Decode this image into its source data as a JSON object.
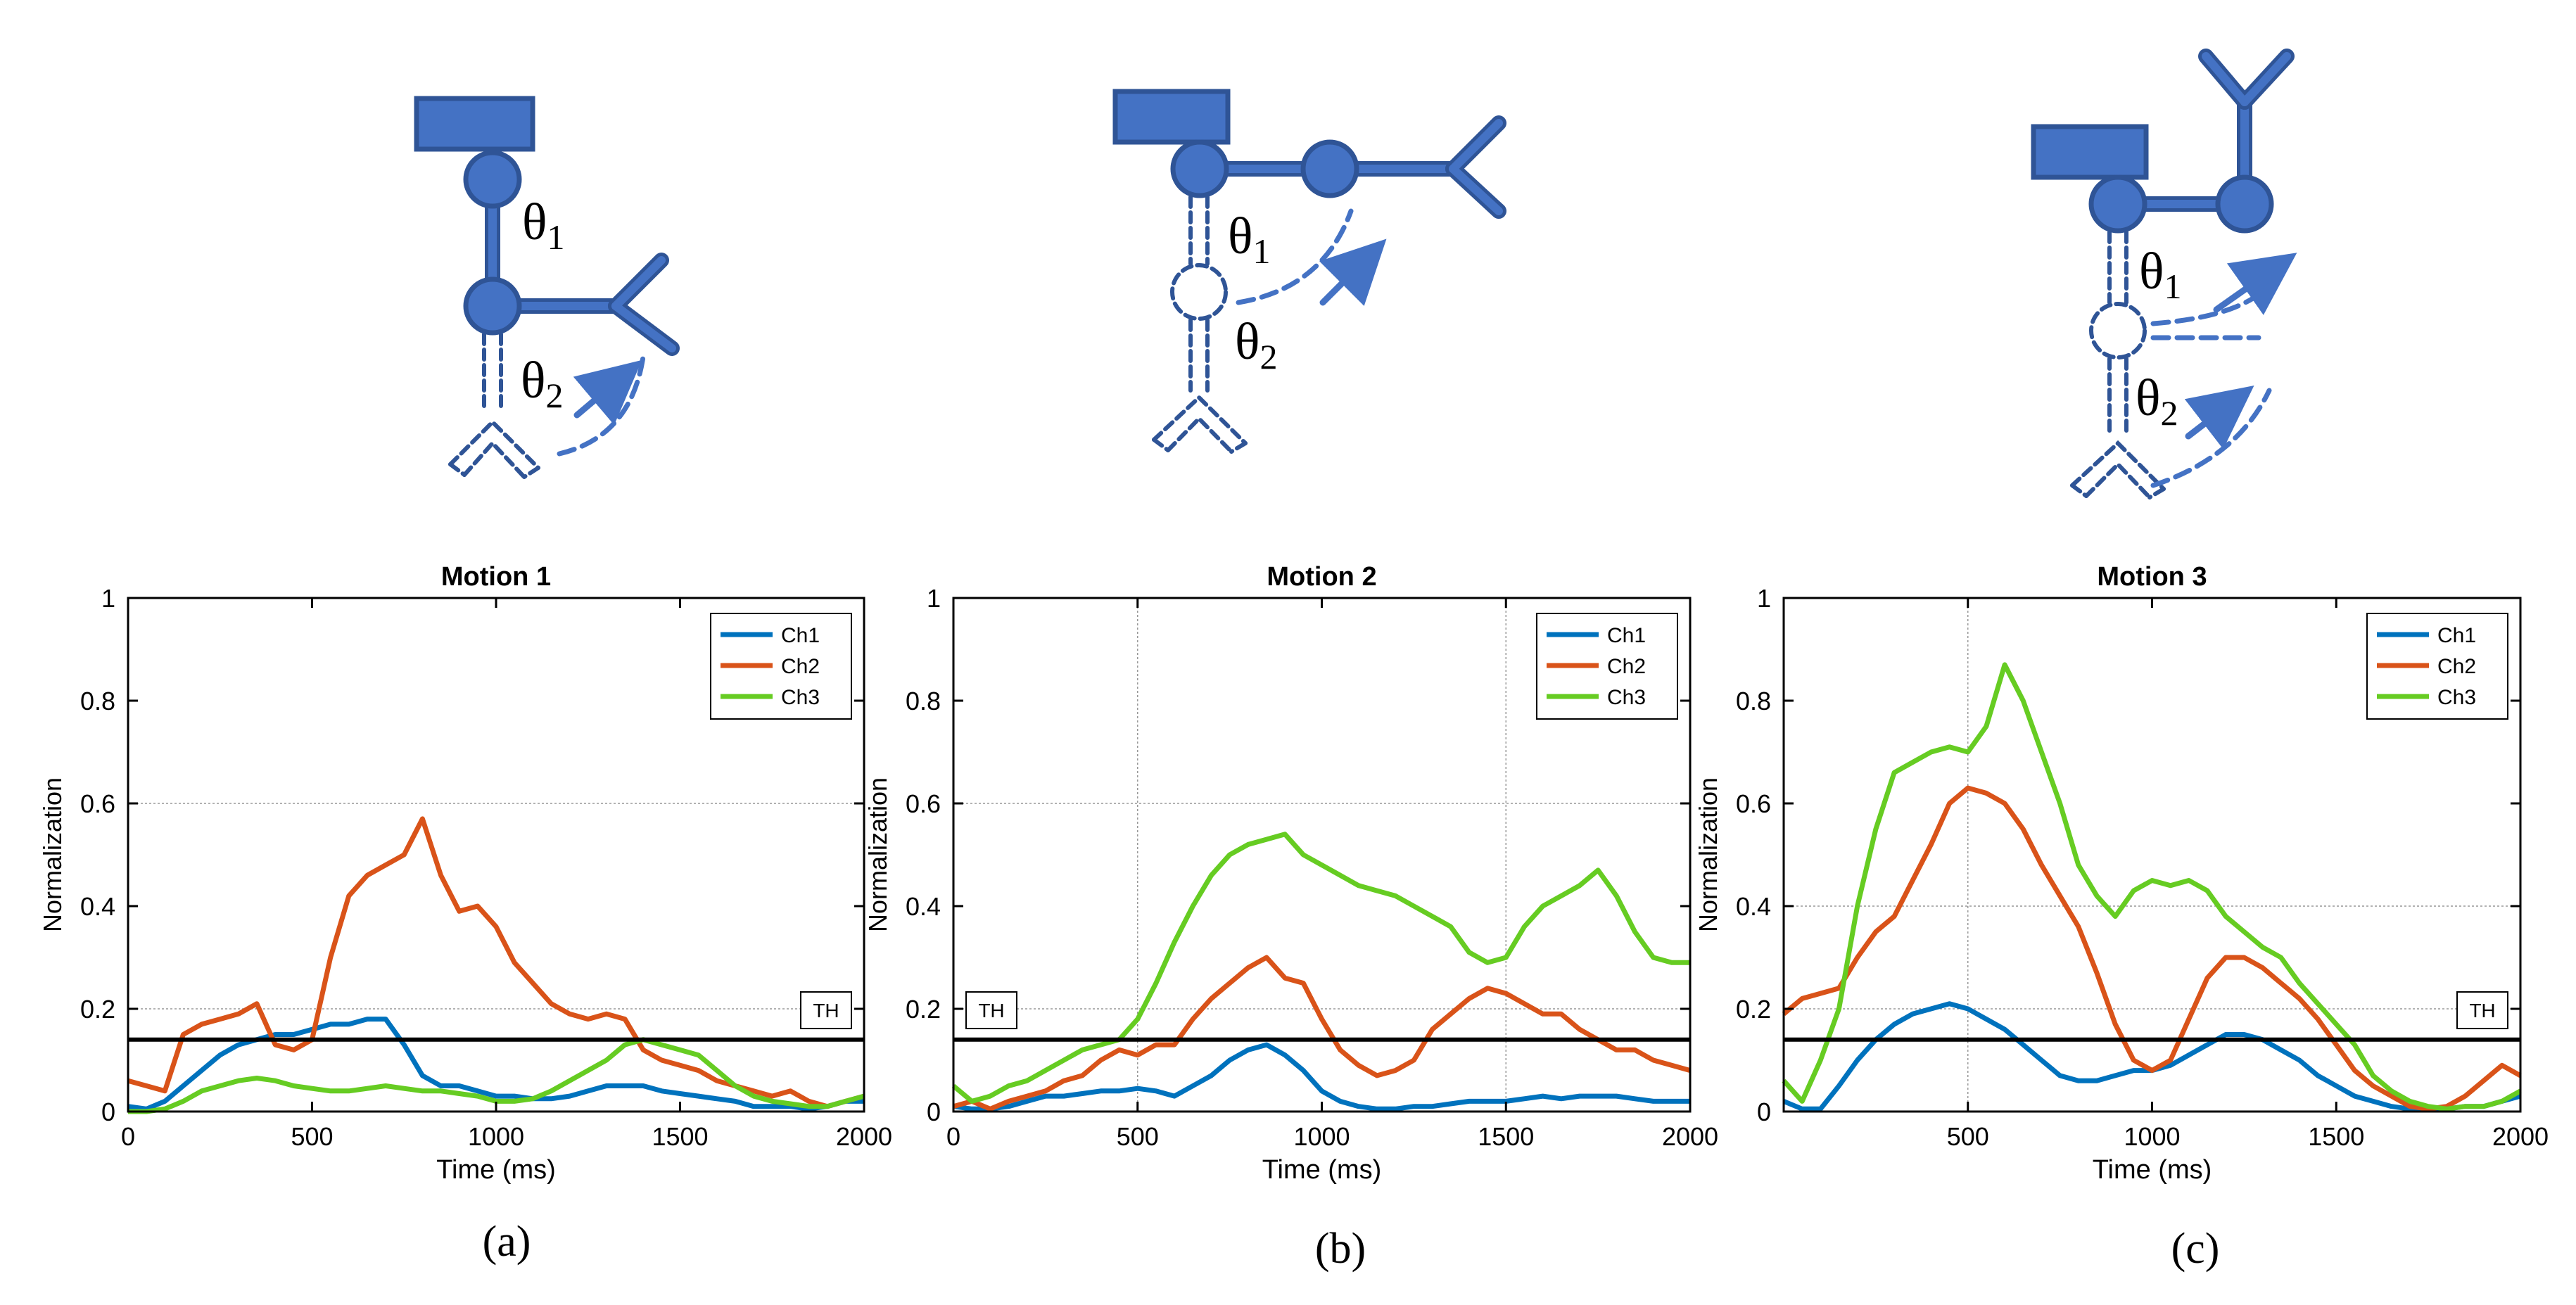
{
  "colors": {
    "arm_fill": "#4472c4",
    "arm_stroke": "#2f5496",
    "ch1": "#0072bd",
    "ch2": "#d95319",
    "ch3": "#66cc22",
    "threshold": "#000000"
  },
  "panels": [
    {
      "id": "a",
      "caption": "(a)",
      "diagram": {
        "icons": [
          "base-block-icon",
          "joint-icon",
          "gripper-icon",
          "motion-arrow-icon"
        ],
        "theta1_label": "θ",
        "theta1_sub": "1",
        "theta2_label": "θ",
        "theta2_sub": "2"
      }
    },
    {
      "id": "b",
      "caption": "(b)",
      "diagram": {
        "icons": [
          "base-block-icon",
          "joint-icon",
          "gripper-icon",
          "motion-arrow-icon"
        ],
        "theta1_label": "θ",
        "theta1_sub": "1",
        "theta2_label": "θ",
        "theta2_sub": "2"
      }
    },
    {
      "id": "c",
      "caption": "(c)",
      "diagram": {
        "icons": [
          "base-block-icon",
          "joint-icon",
          "gripper-icon",
          "motion-arrow-icon"
        ],
        "theta1_label": "θ",
        "theta1_sub": "1",
        "theta2_label": "θ",
        "theta2_sub": "2"
      }
    }
  ],
  "chart_data": [
    {
      "type": "line",
      "title": "Motion 1",
      "xlabel": "Time (ms)",
      "ylabel": "Normalization",
      "xlim": [
        0,
        2000
      ],
      "ylim": [
        0,
        1
      ],
      "xticks": [
        0,
        500,
        1000,
        1500,
        2000
      ],
      "yticks": [
        0,
        0.2,
        0.4,
        0.6,
        0.8,
        1
      ],
      "ytick_labels": [
        "0",
        "0.2",
        "0.4",
        "0.6",
        "0.8",
        "1"
      ],
      "grid_y": [
        0.2,
        0.6
      ],
      "grid_x": [],
      "threshold": {
        "label": "TH",
        "value": 0.14,
        "label_side": "right"
      },
      "legend": {
        "position": "top-right"
      },
      "series": [
        {
          "name": "Ch1",
          "color": "#0072bd",
          "x": [
            0,
            50,
            100,
            150,
            200,
            250,
            300,
            350,
            400,
            450,
            500,
            550,
            600,
            650,
            700,
            750,
            800,
            850,
            900,
            950,
            1000,
            1050,
            1100,
            1150,
            1200,
            1250,
            1300,
            1350,
            1400,
            1450,
            1500,
            1550,
            1600,
            1650,
            1700,
            1750,
            1800,
            1850,
            1900,
            1950,
            2000
          ],
          "y": [
            0.01,
            0.005,
            0.02,
            0.05,
            0.08,
            0.11,
            0.13,
            0.14,
            0.15,
            0.15,
            0.16,
            0.17,
            0.17,
            0.18,
            0.18,
            0.13,
            0.07,
            0.05,
            0.05,
            0.04,
            0.03,
            0.03,
            0.025,
            0.025,
            0.03,
            0.04,
            0.05,
            0.05,
            0.05,
            0.04,
            0.035,
            0.03,
            0.025,
            0.02,
            0.01,
            0.01,
            0.01,
            0.005,
            0.01,
            0.02,
            0.02
          ]
        },
        {
          "name": "Ch2",
          "color": "#d95319",
          "x": [
            0,
            50,
            100,
            150,
            200,
            250,
            300,
            350,
            400,
            450,
            500,
            550,
            600,
            650,
            700,
            750,
            800,
            850,
            900,
            950,
            1000,
            1050,
            1100,
            1150,
            1200,
            1250,
            1300,
            1350,
            1400,
            1450,
            1500,
            1550,
            1600,
            1650,
            1700,
            1750,
            1800,
            1850,
            1900,
            1950,
            2000
          ],
          "y": [
            0.06,
            0.05,
            0.04,
            0.15,
            0.17,
            0.18,
            0.19,
            0.21,
            0.13,
            0.12,
            0.14,
            0.3,
            0.42,
            0.46,
            0.48,
            0.5,
            0.57,
            0.46,
            0.39,
            0.4,
            0.36,
            0.29,
            0.25,
            0.21,
            0.19,
            0.18,
            0.19,
            0.18,
            0.12,
            0.1,
            0.09,
            0.08,
            0.06,
            0.05,
            0.04,
            0.03,
            0.04,
            0.02,
            0.01,
            0.02,
            0.03
          ]
        },
        {
          "name": "Ch3",
          "color": "#66cc22",
          "x": [
            0,
            50,
            100,
            150,
            200,
            250,
            300,
            350,
            400,
            450,
            500,
            550,
            600,
            650,
            700,
            750,
            800,
            850,
            900,
            950,
            1000,
            1050,
            1100,
            1150,
            1200,
            1250,
            1300,
            1350,
            1400,
            1450,
            1500,
            1550,
            1600,
            1650,
            1700,
            1750,
            1800,
            1850,
            1900,
            1950,
            2000
          ],
          "y": [
            0,
            0,
            0.005,
            0.02,
            0.04,
            0.05,
            0.06,
            0.065,
            0.06,
            0.05,
            0.045,
            0.04,
            0.04,
            0.045,
            0.05,
            0.045,
            0.04,
            0.04,
            0.035,
            0.03,
            0.02,
            0.02,
            0.025,
            0.04,
            0.06,
            0.08,
            0.1,
            0.13,
            0.14,
            0.13,
            0.12,
            0.11,
            0.08,
            0.05,
            0.03,
            0.02,
            0.015,
            0.01,
            0.01,
            0.02,
            0.03
          ]
        }
      ]
    },
    {
      "type": "line",
      "title": "Motion 2",
      "xlabel": "Time (ms)",
      "ylabel": "Normalization",
      "xlim": [
        0,
        2000
      ],
      "ylim": [
        0,
        1
      ],
      "xticks": [
        0,
        500,
        1000,
        1500,
        2000
      ],
      "yticks": [
        0,
        0.2,
        0.4,
        0.6,
        0.8,
        1
      ],
      "ytick_labels": [
        "0",
        "0.2",
        "0.4",
        "0.6",
        "0.8",
        "1"
      ],
      "grid_y": [
        0.2,
        0.6
      ],
      "grid_x": [
        500,
        1500
      ],
      "threshold": {
        "label": "TH",
        "value": 0.14,
        "label_side": "left"
      },
      "legend": {
        "position": "top-right"
      },
      "series": [
        {
          "name": "Ch1",
          "color": "#0072bd",
          "x": [
            0,
            50,
            100,
            150,
            200,
            250,
            300,
            350,
            400,
            450,
            500,
            550,
            600,
            650,
            700,
            750,
            800,
            850,
            900,
            950,
            1000,
            1050,
            1100,
            1150,
            1200,
            1250,
            1300,
            1350,
            1400,
            1450,
            1500,
            1550,
            1600,
            1650,
            1700,
            1750,
            1800,
            1850,
            1900,
            1950,
            2000
          ],
          "y": [
            0.01,
            0.005,
            0.005,
            0.01,
            0.02,
            0.03,
            0.03,
            0.035,
            0.04,
            0.04,
            0.045,
            0.04,
            0.03,
            0.05,
            0.07,
            0.1,
            0.12,
            0.13,
            0.11,
            0.08,
            0.04,
            0.02,
            0.01,
            0.005,
            0.005,
            0.01,
            0.01,
            0.015,
            0.02,
            0.02,
            0.02,
            0.025,
            0.03,
            0.025,
            0.03,
            0.03,
            0.03,
            0.025,
            0.02,
            0.02,
            0.02
          ]
        },
        {
          "name": "Ch2",
          "color": "#d95319",
          "x": [
            0,
            50,
            100,
            150,
            200,
            250,
            300,
            350,
            400,
            450,
            500,
            550,
            600,
            650,
            700,
            750,
            800,
            850,
            900,
            950,
            1000,
            1050,
            1100,
            1150,
            1200,
            1250,
            1300,
            1350,
            1400,
            1450,
            1500,
            1550,
            1600,
            1650,
            1700,
            1750,
            1800,
            1850,
            1900,
            1950,
            2000
          ],
          "y": [
            0.01,
            0.02,
            0.005,
            0.02,
            0.03,
            0.04,
            0.06,
            0.07,
            0.1,
            0.12,
            0.11,
            0.13,
            0.13,
            0.18,
            0.22,
            0.25,
            0.28,
            0.3,
            0.26,
            0.25,
            0.18,
            0.12,
            0.09,
            0.07,
            0.08,
            0.1,
            0.16,
            0.19,
            0.22,
            0.24,
            0.23,
            0.21,
            0.19,
            0.19,
            0.16,
            0.14,
            0.12,
            0.12,
            0.1,
            0.09,
            0.08
          ]
        },
        {
          "name": "Ch3",
          "color": "#66cc22",
          "x": [
            0,
            50,
            100,
            150,
            200,
            250,
            300,
            350,
            400,
            450,
            500,
            550,
            600,
            650,
            700,
            750,
            800,
            850,
            900,
            950,
            1000,
            1050,
            1100,
            1150,
            1200,
            1250,
            1300,
            1350,
            1400,
            1450,
            1500,
            1550,
            1600,
            1650,
            1700,
            1750,
            1800,
            1850,
            1900,
            1950,
            2000
          ],
          "y": [
            0.05,
            0.02,
            0.03,
            0.05,
            0.06,
            0.08,
            0.1,
            0.12,
            0.13,
            0.14,
            0.18,
            0.25,
            0.33,
            0.4,
            0.46,
            0.5,
            0.52,
            0.53,
            0.54,
            0.5,
            0.48,
            0.46,
            0.44,
            0.43,
            0.42,
            0.4,
            0.38,
            0.36,
            0.31,
            0.29,
            0.3,
            0.36,
            0.4,
            0.42,
            0.44,
            0.47,
            0.42,
            0.35,
            0.3,
            0.29,
            0.29
          ]
        }
      ]
    },
    {
      "type": "line",
      "title": "Motion 3",
      "xlabel": "Time (ms)",
      "ylabel": "Normalization",
      "xlim": [
        0,
        2000
      ],
      "ylim": [
        0,
        1
      ],
      "xticks": [
        500,
        1000,
        1500,
        2000
      ],
      "yticks": [
        0,
        0.2,
        0.4,
        0.6,
        0.8,
        1
      ],
      "ytick_labels": [
        "0",
        "0.2",
        "0.4",
        "0.6",
        "0.8",
        "1"
      ],
      "grid_y": [
        0.2,
        0.4
      ],
      "grid_x": [
        500
      ],
      "threshold": {
        "label": "TH",
        "value": 0.14,
        "label_side": "right"
      },
      "legend": {
        "position": "top-right"
      },
      "series": [
        {
          "name": "Ch1",
          "color": "#0072bd",
          "x": [
            0,
            50,
            100,
            150,
            200,
            250,
            300,
            350,
            400,
            450,
            500,
            550,
            600,
            650,
            700,
            750,
            800,
            850,
            900,
            950,
            1000,
            1050,
            1100,
            1150,
            1200,
            1250,
            1300,
            1350,
            1400,
            1450,
            1500,
            1550,
            1600,
            1650,
            1700,
            1750,
            1800,
            1850,
            1900,
            1950,
            2000
          ],
          "y": [
            0.02,
            0.005,
            0.005,
            0.05,
            0.1,
            0.14,
            0.17,
            0.19,
            0.2,
            0.21,
            0.2,
            0.18,
            0.16,
            0.13,
            0.1,
            0.07,
            0.06,
            0.06,
            0.07,
            0.08,
            0.08,
            0.09,
            0.11,
            0.13,
            0.15,
            0.15,
            0.14,
            0.12,
            0.1,
            0.07,
            0.05,
            0.03,
            0.02,
            0.01,
            0.005,
            0.005,
            0.005,
            0.01,
            0.01,
            0.02,
            0.03
          ]
        },
        {
          "name": "Ch2",
          "color": "#d95319",
          "x": [
            0,
            50,
            100,
            150,
            200,
            250,
            300,
            350,
            400,
            450,
            500,
            550,
            600,
            650,
            700,
            750,
            800,
            850,
            900,
            950,
            1000,
            1050,
            1100,
            1150,
            1200,
            1250,
            1300,
            1350,
            1400,
            1450,
            1500,
            1550,
            1600,
            1650,
            1700,
            1750,
            1800,
            1850,
            1900,
            1950,
            2000
          ],
          "y": [
            0.19,
            0.22,
            0.23,
            0.24,
            0.3,
            0.35,
            0.38,
            0.45,
            0.52,
            0.6,
            0.63,
            0.62,
            0.6,
            0.55,
            0.48,
            0.42,
            0.36,
            0.27,
            0.17,
            0.1,
            0.08,
            0.1,
            0.18,
            0.26,
            0.3,
            0.3,
            0.28,
            0.25,
            0.22,
            0.18,
            0.13,
            0.08,
            0.05,
            0.03,
            0.01,
            0.005,
            0.01,
            0.03,
            0.06,
            0.09,
            0.07
          ]
        },
        {
          "name": "Ch3",
          "color": "#66cc22",
          "x": [
            0,
            50,
            100,
            150,
            200,
            250,
            300,
            350,
            400,
            450,
            500,
            550,
            600,
            650,
            700,
            750,
            800,
            850,
            900,
            950,
            1000,
            1050,
            1100,
            1150,
            1200,
            1250,
            1300,
            1350,
            1400,
            1450,
            1500,
            1550,
            1600,
            1650,
            1700,
            1750,
            1800,
            1850,
            1900,
            1950,
            2000
          ],
          "y": [
            0.06,
            0.02,
            0.1,
            0.2,
            0.4,
            0.55,
            0.66,
            0.68,
            0.7,
            0.71,
            0.7,
            0.75,
            0.87,
            0.8,
            0.7,
            0.6,
            0.48,
            0.42,
            0.38,
            0.43,
            0.45,
            0.44,
            0.45,
            0.43,
            0.38,
            0.35,
            0.32,
            0.3,
            0.25,
            0.21,
            0.17,
            0.13,
            0.07,
            0.04,
            0.02,
            0.01,
            0.005,
            0.01,
            0.01,
            0.02,
            0.04
          ]
        }
      ]
    }
  ]
}
